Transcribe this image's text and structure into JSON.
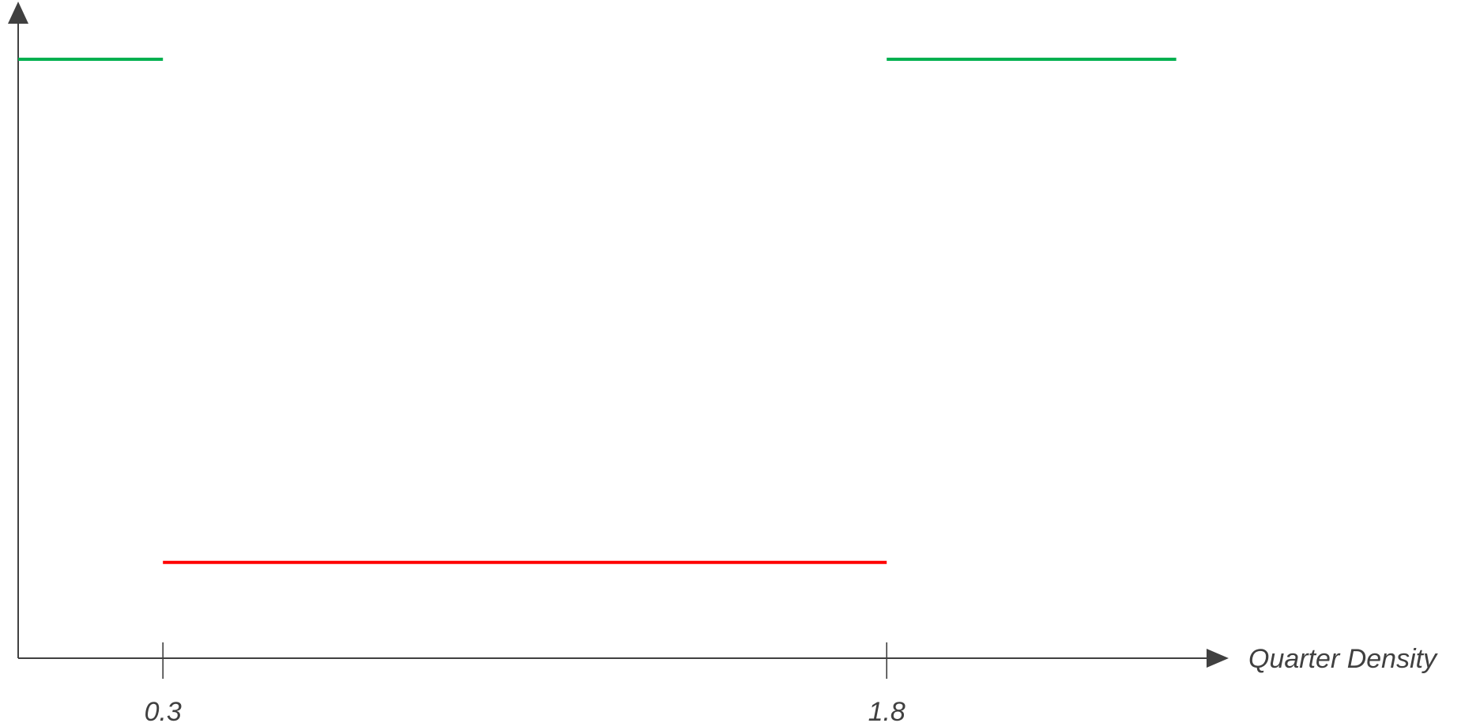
{
  "chart_data": {
    "type": "line",
    "title": "",
    "xlabel": "Quarter Density",
    "ylabel": "",
    "x_ticks": [
      0.3,
      1.8
    ],
    "x_tick_labels": [
      "0.3",
      "1.8"
    ],
    "xlim": [
      0.0,
      2.7
    ],
    "ylim": [
      0,
      1
    ],
    "grid": false,
    "legend": "none",
    "segments": [
      {
        "x_start": 0.0,
        "x_end": 0.3,
        "y": 1,
        "color": "#00B050"
      },
      {
        "x_start": 0.3,
        "x_end": 1.8,
        "y": 0.16,
        "color": "#FF0000"
      },
      {
        "x_start": 1.8,
        "x_end": 2.4,
        "y": 1,
        "color": "#00B050"
      }
    ]
  }
}
